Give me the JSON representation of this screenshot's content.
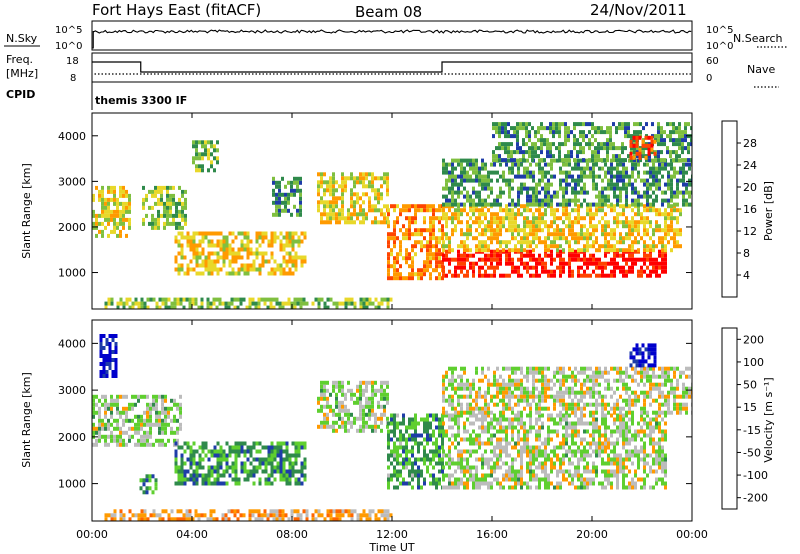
{
  "header": {
    "station": "Fort Hays East (fitACF)",
    "beam": "Beam 08",
    "date": "24/Nov/2011"
  },
  "top_panels": {
    "nsky": {
      "left_label": "N.Sky",
      "left_ticks": [
        "10^5",
        "10^0"
      ],
      "right_label": "N.Search",
      "right_ticks": [
        "10^5",
        "10^0"
      ]
    },
    "freq": {
      "left_label_1": "Freq.",
      "left_label_2": "[MHz]",
      "left_ticks": [
        "18",
        "8"
      ],
      "right_label": "Nave",
      "right_ticks": [
        "60",
        "0"
      ],
      "steps_hours": [
        0.0,
        1.95,
        14.0,
        24.0
      ],
      "step_levels": [
        1.0,
        0.0,
        1.0
      ]
    },
    "cpid": {
      "label": "CPID",
      "text": "themis 3300 IF"
    }
  },
  "chart_data": [
    {
      "type": "heatmap",
      "title": "Power",
      "xlabel": "Time UT",
      "ylabel": "Slant Range [km]",
      "xlim": [
        0,
        24
      ],
      "ylim": [
        200,
        4500
      ],
      "x_ticks": [
        "00:00",
        "04:00",
        "08:00",
        "12:00",
        "16:00",
        "20:00",
        "00:00"
      ],
      "y_ticks": [
        1000,
        2000,
        3000,
        4000
      ],
      "colorbar": {
        "label": "Power [dB]",
        "ticks": [
          "4",
          "8",
          "12",
          "16",
          "20",
          "24",
          "28"
        ],
        "colors": [
          "#0000ff",
          "#1e3ca8",
          "#2f8a4b",
          "#7fbf3f",
          "#e8d82a",
          "#ff9a00",
          "#ff4400",
          "#ff0000"
        ]
      },
      "regions": [
        {
          "t": [
            0.0,
            1.5
          ],
          "r": [
            1800,
            2900
          ],
          "level": 0.55
        },
        {
          "t": [
            2.0,
            3.8
          ],
          "r": [
            2000,
            2900
          ],
          "level": 0.45
        },
        {
          "t": [
            3.3,
            8.5
          ],
          "r": [
            1000,
            1900
          ],
          "level": 0.6
        },
        {
          "t": [
            4.0,
            5.0
          ],
          "r": [
            3200,
            3900
          ],
          "level": 0.4
        },
        {
          "t": [
            7.2,
            8.3
          ],
          "r": [
            2300,
            3100
          ],
          "level": 0.35
        },
        {
          "t": [
            9.0,
            11.8
          ],
          "r": [
            2100,
            3200
          ],
          "level": 0.55
        },
        {
          "t": [
            11.8,
            14.0
          ],
          "r": [
            900,
            2500
          ],
          "level": 0.7
        },
        {
          "t": [
            14.0,
            23.0
          ],
          "r": [
            900,
            1500
          ],
          "level": 0.92
        },
        {
          "t": [
            14.0,
            23.5
          ],
          "r": [
            1500,
            2500
          ],
          "level": 0.6
        },
        {
          "t": [
            14.0,
            24.0
          ],
          "r": [
            2500,
            3500
          ],
          "level": 0.35
        },
        {
          "t": [
            16.0,
            24.0
          ],
          "r": [
            3500,
            4300
          ],
          "level": 0.35
        },
        {
          "t": [
            21.5,
            22.5
          ],
          "r": [
            3500,
            4000
          ],
          "level": 0.8
        },
        {
          "t": [
            0.5,
            12.0
          ],
          "r": [
            250,
            450
          ],
          "level": 0.45
        }
      ]
    },
    {
      "type": "heatmap",
      "title": "Velocity",
      "xlabel": "Time UT",
      "ylabel": "Slant Range [km]",
      "xlim": [
        0,
        24
      ],
      "ylim": [
        200,
        4500
      ],
      "x_ticks": [
        "00:00",
        "04:00",
        "08:00",
        "12:00",
        "16:00",
        "20:00",
        "00:00"
      ],
      "y_ticks": [
        1000,
        2000,
        3000,
        4000
      ],
      "colorbar": {
        "label": "Velocity [m s⁻¹]",
        "ticks": [
          "200",
          "100",
          "50",
          "15",
          "-15",
          "-50",
          "-100",
          "-200"
        ],
        "colors": [
          "#0000cc",
          "#1e3ca8",
          "#2f8a4b",
          "#5fcf2f",
          "#bcbcbc",
          "#ff9a00",
          "#ff6600",
          "#ff0000"
        ]
      },
      "regions": [
        {
          "t": [
            0.0,
            3.5
          ],
          "r": [
            1800,
            2900
          ],
          "level": 0.5
        },
        {
          "t": [
            3.3,
            8.5
          ],
          "r": [
            1000,
            1900
          ],
          "level": 0.34
        },
        {
          "t": [
            1.9,
            2.6
          ],
          "r": [
            800,
            1200
          ],
          "level": 0.34
        },
        {
          "t": [
            0.3,
            1.0
          ],
          "r": [
            3300,
            4200
          ],
          "level": 0.05
        },
        {
          "t": [
            9.0,
            11.8
          ],
          "r": [
            2100,
            3200
          ],
          "level": 0.5
        },
        {
          "t": [
            11.8,
            14.0
          ],
          "r": [
            900,
            2500
          ],
          "level": 0.36
        },
        {
          "t": [
            14.0,
            23.0
          ],
          "r": [
            900,
            2500
          ],
          "level": 0.52
        },
        {
          "t": [
            14.0,
            24.0
          ],
          "r": [
            2500,
            3500
          ],
          "level": 0.55
        },
        {
          "t": [
            21.5,
            22.5
          ],
          "r": [
            3500,
            4000
          ],
          "level": 0.1
        },
        {
          "t": [
            0.5,
            12.0
          ],
          "r": [
            250,
            450
          ],
          "level": 0.68
        }
      ]
    }
  ]
}
